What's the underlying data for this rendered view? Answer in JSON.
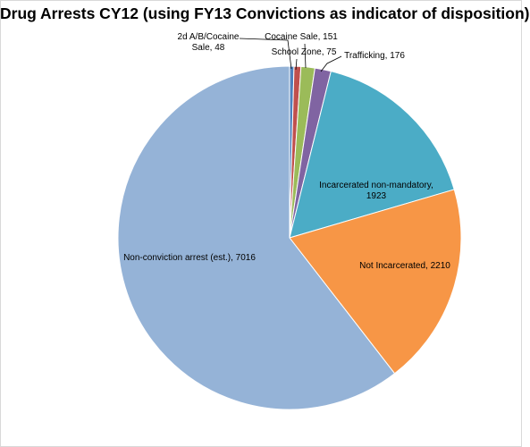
{
  "chart_data": {
    "type": "pie",
    "title": "Drug Arrests CY12 (using FY13 Convictions as indicator of disposition)",
    "slices": [
      {
        "label_lines": [
          "2d A/B/Cocaine",
          "Sale, 48"
        ],
        "category": "2d A/B/Cocaine Sale",
        "value": 48,
        "color": "#4f81bd"
      },
      {
        "label_lines": [
          "School Zone, 75"
        ],
        "category": "School Zone",
        "value": 75,
        "color": "#c0504d"
      },
      {
        "label_lines": [
          "Cocaine Sale, 151"
        ],
        "category": "Cocaine Sale",
        "value": 151,
        "color": "#9bbb59"
      },
      {
        "label_lines": [
          "Trafficking, 176"
        ],
        "category": "Trafficking",
        "value": 176,
        "color": "#8064a2"
      },
      {
        "label_lines": [
          "Incarcerated non-mandatory,",
          "1923"
        ],
        "category": "Incarcerated non-mandatory",
        "value": 1923,
        "color": "#4bacc6"
      },
      {
        "label_lines": [
          "Not Incarcerated, 2210"
        ],
        "category": "Not Incarcerated",
        "value": 2210,
        "color": "#f79646"
      },
      {
        "label_lines": [
          "Non-conviction arrest (est.), 7016"
        ],
        "category": "Non-conviction arrest (est.)",
        "value": 7016,
        "color": "#95b3d7"
      }
    ],
    "start_angle_deg": 0,
    "direction": "clockwise",
    "legend": "none"
  }
}
